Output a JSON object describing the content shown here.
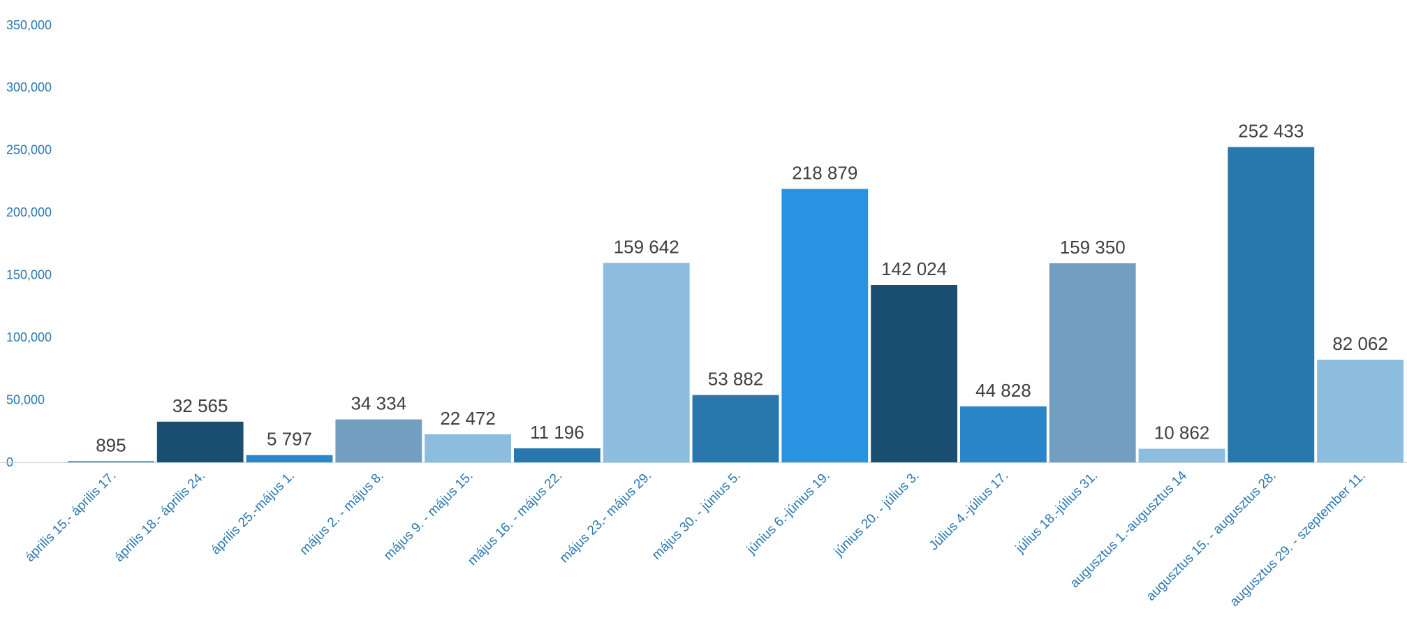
{
  "chart_data": {
    "type": "bar",
    "title": "",
    "xlabel": "",
    "ylabel": "",
    "ylim": [
      0,
      350000
    ],
    "yticks": [
      0,
      50000,
      100000,
      150000,
      200000,
      250000,
      300000,
      350000
    ],
    "ytick_labels": [
      "0",
      "50,000",
      "100,000",
      "150,000",
      "200,000",
      "250,000",
      "300,000",
      "350,000"
    ],
    "grid": false,
    "legend": "none",
    "categories": [
      "április 15.- április 17.",
      "április 18.- április 24.",
      "április 25.-május 1.",
      "május 2. - május 8.",
      "május 9. - május 15.",
      "május 16. - május 22.",
      "május 23.- május 29.",
      "május 30. - június 5.",
      "június 6.-június 19.",
      "június 20. - július 3.",
      "Július 4.-július 17.",
      "július 18.-július 31.",
      "augusztus 1.-augusztus 14",
      "augusztus 15. - augusztus 28.",
      "augusztus 29. - szeptember 11."
    ],
    "values": [
      895,
      32565,
      5797,
      34334,
      22472,
      11196,
      159642,
      53882,
      218879,
      142024,
      44828,
      159350,
      10862,
      252433,
      82062
    ],
    "data_labels": [
      "895",
      "32 565",
      "5 797",
      "34 334",
      "22 472",
      "11 196",
      "159 642",
      "53 882",
      "218 879",
      "142 024",
      "44 828",
      "159 350",
      "10 862",
      "252 433",
      "82 062"
    ],
    "colors": [
      "#2a86c8",
      "#1a4f72",
      "#2a86c8",
      "#729fbf",
      "#8cbcde",
      "#2878ae",
      "#8cbcde",
      "#2878ae",
      "#2893e0",
      "#1a4f72",
      "#2a86c8",
      "#729fbf",
      "#8cbcde",
      "#2878ae",
      "#8cbcde"
    ],
    "axis_color": "#2a77b0"
  }
}
